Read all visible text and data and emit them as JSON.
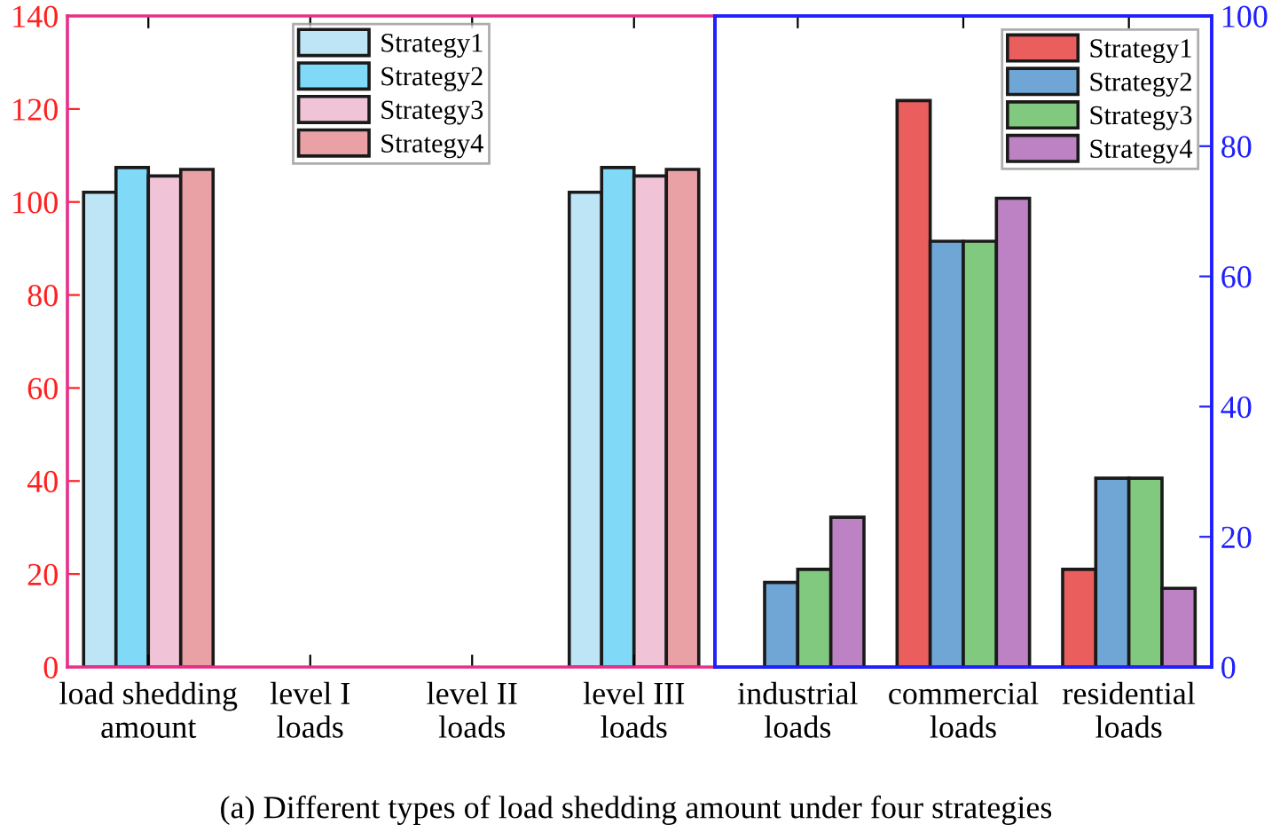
{
  "chart_data": [
    {
      "type": "bar",
      "title": "(a) Different types of load shedding amount under four strategies",
      "categories": [
        "load shedding\namount",
        "level I\nloads",
        "level II\nloads",
        "level III\nloads"
      ],
      "series": [
        {
          "name": "Strategy1",
          "color": "#bde5f5",
          "values": [
            102.1,
            null,
            null,
            102.1
          ]
        },
        {
          "name": "Strategy2",
          "color": "#7fd9f7",
          "values": [
            107.4,
            null,
            null,
            107.4
          ]
        },
        {
          "name": "Strategy3",
          "color": "#f0c3d7",
          "values": [
            105.6,
            null,
            null,
            105.6
          ]
        },
        {
          "name": "Strategy4",
          "color": "#e9a1a6",
          "values": [
            107.0,
            null,
            null,
            107.0
          ]
        }
      ],
      "ylim": [
        0,
        140
      ],
      "yticks": [
        0,
        20,
        40,
        60,
        80,
        100,
        120,
        140
      ],
      "legend": "top",
      "grid": false
    },
    {
      "type": "bar",
      "categories": [
        "industrial\nloads",
        "commercial\nloads",
        "residential\nloads"
      ],
      "series": [
        {
          "name": "Strategy1",
          "color": "#ea5e5e",
          "values": [
            null,
            87.0,
            15.0
          ],
          "axis": "y2"
        },
        {
          "name": "Strategy2",
          "color": "#6fa6d6",
          "values": [
            13.0,
            65.4,
            29.0
          ],
          "axis": "y2"
        },
        {
          "name": "Strategy3",
          "color": "#80c97f",
          "values": [
            15.0,
            65.4,
            29.0
          ],
          "axis": "y2"
        },
        {
          "name": "Strategy4",
          "color": "#bd82c3",
          "values": [
            23.0,
            72.0,
            12.1
          ],
          "axis": "y2"
        }
      ],
      "y2lim": [
        0,
        100
      ],
      "y2ticks": [
        0,
        20,
        40,
        60,
        80,
        100
      ],
      "legend": "top right",
      "grid": false
    }
  ]
}
